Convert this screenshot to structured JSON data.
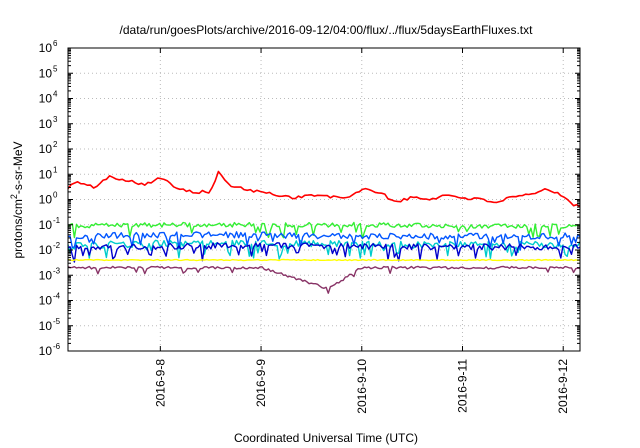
{
  "chart_data": {
    "type": "line",
    "title": "/data/run/goesPlots/archive/2016-09-12/04:00/flux/../flux/5daysEarthFluxes.txt",
    "xlabel": "Coordinated Universal Time (UTC)",
    "ylabel": {
      "base": "protons/cm",
      "sup": "2",
      "rest": "-s-sr-MeV"
    },
    "yscale": "log",
    "ylim": [
      1e-06,
      1000000.0
    ],
    "xlim": [
      "2016-09-07T02:00",
      "2016-09-12T04:00"
    ],
    "grid": true,
    "legend": "none",
    "y_ticks": [
      {
        "value": 1e-06,
        "base": "10",
        "exp": "-6"
      },
      {
        "value": 1e-05,
        "base": "10",
        "exp": "-5"
      },
      {
        "value": 0.0001,
        "base": "10",
        "exp": "-4"
      },
      {
        "value": 0.001,
        "base": "10",
        "exp": "-3"
      },
      {
        "value": 0.01,
        "base": "10",
        "exp": "-2"
      },
      {
        "value": 0.1,
        "base": "10",
        "exp": "-1"
      },
      {
        "value": 1,
        "base": "10",
        "exp": "0"
      },
      {
        "value": 10.0,
        "base": "10",
        "exp": "1"
      },
      {
        "value": 100.0,
        "base": "10",
        "exp": "2"
      },
      {
        "value": 1000.0,
        "base": "10",
        "exp": "3"
      },
      {
        "value": 10000.0,
        "base": "10",
        "exp": "4"
      },
      {
        "value": 100000.0,
        "base": "10",
        "exp": "5"
      },
      {
        "value": 1000000.0,
        "base": "10",
        "exp": "6"
      }
    ],
    "x_ticks": [
      {
        "value": "2016-09-08T00:00",
        "label": "2016-9-8"
      },
      {
        "value": "2016-09-09T00:00",
        "label": "2016-9-9"
      },
      {
        "value": "2016-09-10T00:00",
        "label": "2016-9-10"
      },
      {
        "value": "2016-09-11T00:00",
        "label": "2016-9-11"
      },
      {
        "value": "2016-09-12T00:00",
        "label": "2016-9-12"
      }
    ],
    "series": [
      {
        "color": "#ff0000",
        "x": [
          "2016-09-07T02:00",
          "2016-09-07T04:00",
          "2016-09-07T08:00",
          "2016-09-07T12:00",
          "2016-09-07T16:00",
          "2016-09-07T20:00",
          "2016-09-08T00:00",
          "2016-09-08T04:00",
          "2016-09-08T08:00",
          "2016-09-08T12:00",
          "2016-09-08T14:00",
          "2016-09-08T16:00",
          "2016-09-08T20:00",
          "2016-09-09T00:00",
          "2016-09-09T04:00",
          "2016-09-09T08:00",
          "2016-09-09T12:00",
          "2016-09-09T16:00",
          "2016-09-09T20:00",
          "2016-09-10T00:00",
          "2016-09-10T04:00",
          "2016-09-10T08:00",
          "2016-09-10T12:00",
          "2016-09-10T16:00",
          "2016-09-10T20:00",
          "2016-09-11T00:00",
          "2016-09-11T04:00",
          "2016-09-11T08:00",
          "2016-09-11T12:00",
          "2016-09-11T16:00",
          "2016-09-11T20:00",
          "2016-09-12T00:00",
          "2016-09-12T02:00",
          "2016-09-12T04:00"
        ],
        "y": [
          3,
          5,
          3,
          8,
          6,
          4,
          7,
          3,
          2,
          2,
          14,
          4,
          2.5,
          2,
          1.5,
          1.2,
          1.5,
          1.3,
          1.1,
          2.5,
          2,
          0.8,
          1.2,
          1.0,
          1.5,
          1.2,
          1.0,
          0.8,
          1.2,
          1.5,
          2.5,
          1.5,
          0.7,
          0.5
        ]
      },
      {
        "color": "#33ee33",
        "x": [
          "2016-09-07T02:00",
          "2016-09-08T00:00",
          "2016-09-09T00:00",
          "2016-09-10T00:00",
          "2016-09-11T00:00",
          "2016-09-12T00:00",
          "2016-09-12T04:00"
        ],
        "y": [
          0.09,
          0.1,
          0.1,
          0.1,
          0.09,
          0.09,
          0.1
        ]
      },
      {
        "color": "#00cccc",
        "x": [
          "2016-09-07T02:00",
          "2016-09-08T00:00",
          "2016-09-09T00:00",
          "2016-09-10T00:00",
          "2016-09-11T00:00",
          "2016-09-12T00:00",
          "2016-09-12T04:00"
        ],
        "y": [
          0.015,
          0.018,
          0.018,
          0.017,
          0.016,
          0.016,
          0.017
        ]
      },
      {
        "color": "#0055ff",
        "x": [
          "2016-09-07T02:00",
          "2016-09-08T00:00",
          "2016-09-09T00:00",
          "2016-09-10T00:00",
          "2016-09-11T00:00",
          "2016-09-12T00:00",
          "2016-09-12T04:00"
        ],
        "y": [
          0.035,
          0.04,
          0.04,
          0.035,
          0.035,
          0.035,
          0.04
        ]
      },
      {
        "color": "#0000cc",
        "x": [
          "2016-09-07T02:00",
          "2016-09-08T00:00",
          "2016-09-09T00:00",
          "2016-09-10T00:00",
          "2016-09-11T00:00",
          "2016-09-12T00:00",
          "2016-09-12T04:00"
        ],
        "y": [
          0.012,
          0.014,
          0.015,
          0.014,
          0.013,
          0.013,
          0.014
        ]
      },
      {
        "color": "#ffff00",
        "x": [
          "2016-09-07T02:00",
          "2016-09-08T00:00",
          "2016-09-09T00:00",
          "2016-09-10T00:00",
          "2016-09-11T00:00",
          "2016-09-12T00:00",
          "2016-09-12T04:00"
        ],
        "y": [
          0.004,
          0.004,
          0.004,
          0.004,
          0.004,
          0.004,
          0.004
        ]
      },
      {
        "color": "#883366",
        "x": [
          "2016-09-07T02:00",
          "2016-09-08T00:00",
          "2016-09-09T00:00",
          "2016-09-09T16:00",
          "2016-09-10T00:00",
          "2016-09-11T00:00",
          "2016-09-12T00:00",
          "2016-09-12T04:00"
        ],
        "y": [
          0.002,
          0.002,
          0.002,
          0.0003,
          0.002,
          0.002,
          0.002,
          0.0018
        ]
      }
    ]
  }
}
